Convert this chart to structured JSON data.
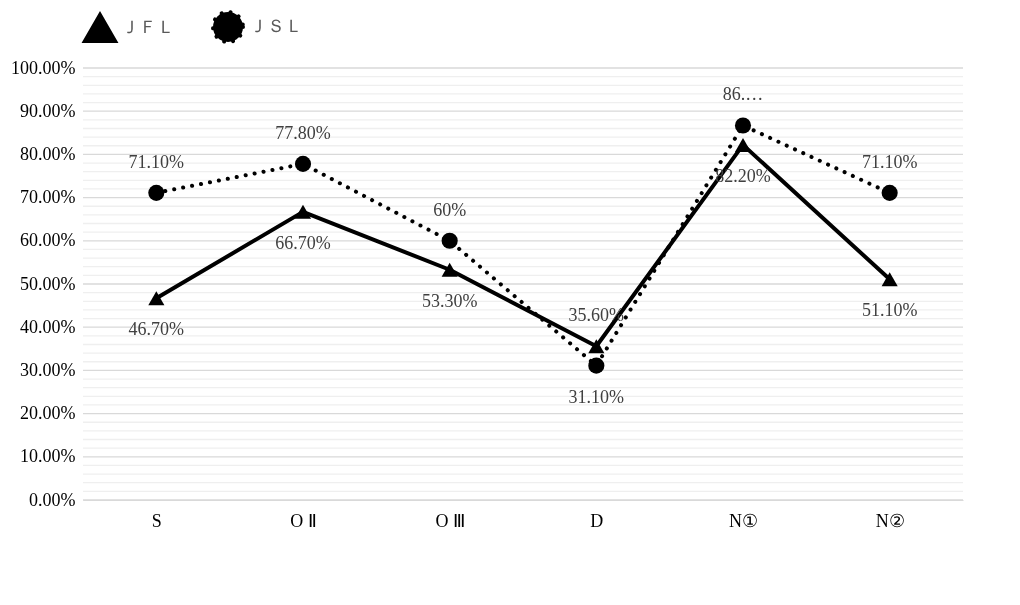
{
  "chart_data": {
    "type": "line",
    "categories": [
      "S",
      "O Ⅱ",
      "O Ⅲ",
      "D",
      "N①",
      "N②"
    ],
    "series": [
      {
        "name": "ＪＦＬ",
        "color": "#000000",
        "marker": "triangle",
        "line_style": "solid",
        "values": [
          46.7,
          66.7,
          53.3,
          35.6,
          82.2,
          51.1
        ],
        "value_labels": [
          "46.70%",
          "66.70%",
          "53.30%",
          "35.60%",
          "82.20%",
          "51.10%"
        ]
      },
      {
        "name": "ＪＳＬ",
        "color": "#000000",
        "marker": "circle",
        "line_style": "dotted",
        "values": [
          71.1,
          77.8,
          60,
          31.1,
          86.7,
          71.1
        ],
        "value_labels": [
          "71.10%",
          "77.80%",
          "60%",
          "31.10%",
          "86.…",
          "71.10%"
        ]
      }
    ],
    "ylim": [
      0,
      100
    ],
    "yticks": [
      {
        "value": 0,
        "label": "0.00%"
      },
      {
        "value": 2,
        "label": null
      },
      {
        "value": 4,
        "label": null
      },
      {
        "value": 6,
        "label": null
      },
      {
        "value": 8,
        "label": null
      },
      {
        "value": 10,
        "label": "10.00%"
      },
      {
        "value": 12,
        "label": null
      },
      {
        "value": 14,
        "label": null
      },
      {
        "value": 16,
        "label": null
      },
      {
        "value": 18,
        "label": null
      },
      {
        "value": 20,
        "label": "20.00%"
      },
      {
        "value": 22,
        "label": null
      },
      {
        "value": 24,
        "label": null
      },
      {
        "value": 26,
        "label": null
      },
      {
        "value": 28,
        "label": null
      },
      {
        "value": 30,
        "label": "30.00%"
      },
      {
        "value": 32,
        "label": null
      },
      {
        "value": 34,
        "label": null
      },
      {
        "value": 36,
        "label": null
      },
      {
        "value": 38,
        "label": null
      },
      {
        "value": 40,
        "label": "40.00%"
      },
      {
        "value": 42,
        "label": null
      },
      {
        "value": 44,
        "label": null
      },
      {
        "value": 46,
        "label": null
      },
      {
        "value": 48,
        "label": null
      },
      {
        "value": 50,
        "label": "50.00%"
      },
      {
        "value": 52,
        "label": null
      },
      {
        "value": 54,
        "label": null
      },
      {
        "value": 56,
        "label": null
      },
      {
        "value": 58,
        "label": null
      },
      {
        "value": 60,
        "label": "60.00%"
      },
      {
        "value": 62,
        "label": null
      },
      {
        "value": 64,
        "label": null
      },
      {
        "value": 66,
        "label": null
      },
      {
        "value": 68,
        "label": null
      },
      {
        "value": 70,
        "label": "70.00%"
      },
      {
        "value": 72,
        "label": null
      },
      {
        "value": 74,
        "label": null
      },
      {
        "value": 76,
        "label": null
      },
      {
        "value": 78,
        "label": null
      },
      {
        "value": 80,
        "label": "80.00%"
      },
      {
        "value": 82,
        "label": null
      },
      {
        "value": 84,
        "label": null
      },
      {
        "value": 86,
        "label": null
      },
      {
        "value": 88,
        "label": null
      },
      {
        "value": 90,
        "label": "90.00%"
      },
      {
        "value": 92,
        "label": null
      },
      {
        "value": 94,
        "label": null
      },
      {
        "value": 96,
        "label": null
      },
      {
        "value": 98,
        "label": null
      },
      {
        "value": 100,
        "label": "100.00%"
      }
    ],
    "grid": "y",
    "legend": "top"
  }
}
